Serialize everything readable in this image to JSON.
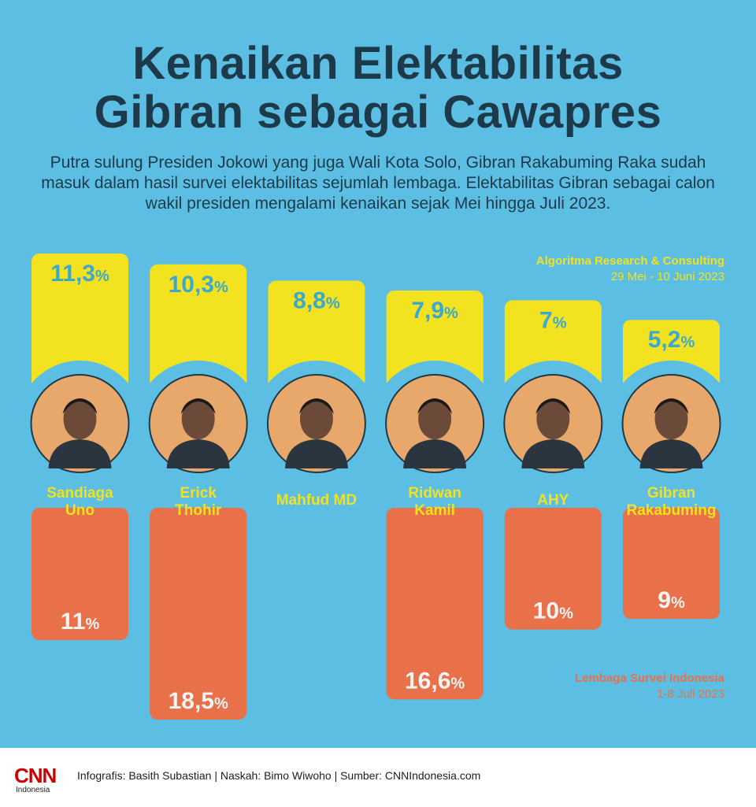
{
  "title_line1": "Kenaikan Elektabilitas",
  "title_line2": "Gibran sebagai Cawapres",
  "subtitle": "Putra sulung Presiden Jokowi yang juga Wali Kota Solo, Gibran Rakabuming Raka sudah masuk dalam hasil survei elektabilitas sejumlah lembaga. Elektabilitas Gibran sebagai calon wakil presiden mengalami kenaikan sejak Mei hingga Juli 2023.",
  "sources": {
    "top": {
      "name": "Algoritma Research & Consulting",
      "period": "29 Mei - 10 Juni 2023"
    },
    "bottom": {
      "name": "Lembaga Survei Indonesia",
      "period": "1-8 Juli 2023"
    }
  },
  "colors": {
    "background": "#5cbee3",
    "top_bar": "#f2e21f",
    "bottom_bar": "#e8714a",
    "top_value": "#3aa8d0",
    "bottom_value": "#f4f4f4",
    "name_text": "#f2e21f",
    "photo_bg": "#e9a86b"
  },
  "footer": {
    "logo_main": "CNN",
    "logo_sub": "Indonesia",
    "credits": "Infografis: Basith Subastian | Naskah: Bimo Wiwoho | Sumber: CNNIndonesia.com"
  },
  "chart_data": {
    "type": "bar",
    "categories": [
      "Sandiaga Uno",
      "Erick Thohir",
      "Mahfud MD",
      "Ridwan Kamil",
      "AHY",
      "Gibran Rakabuming"
    ],
    "name_lines": [
      [
        "Sandiaga",
        "Uno"
      ],
      [
        "Erick",
        "Thohir"
      ],
      [
        "Mahfud MD"
      ],
      [
        "Ridwan",
        "Kamil"
      ],
      [
        "AHY"
      ],
      [
        "Gibran",
        "Rakabuming"
      ]
    ],
    "series": [
      {
        "name": "Algoritma Research & Consulting",
        "values": [
          11.3,
          10.3,
          8.8,
          7.9,
          7,
          5.2
        ],
        "labels": [
          "11,3",
          "10,3",
          "8,8",
          "7,9",
          "7",
          "5,2"
        ]
      },
      {
        "name": "Lembaga Survei Indonesia",
        "values": [
          11,
          18.5,
          null,
          16.6,
          10,
          9
        ],
        "labels": [
          "11",
          "18,5",
          "",
          "16,6",
          "10",
          "9"
        ]
      }
    ],
    "unit": "%"
  }
}
